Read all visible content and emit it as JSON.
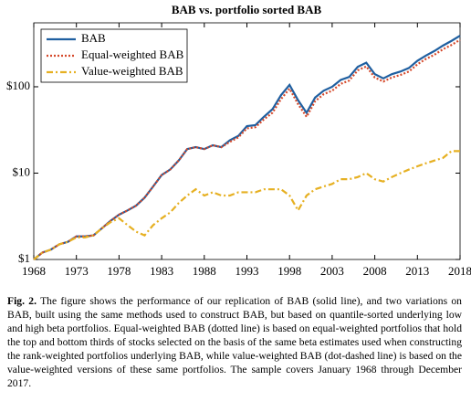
{
  "chart_data": {
    "type": "line",
    "title": "BAB vs. portfolio sorted BAB",
    "x": [
      1968,
      1969,
      1970,
      1971,
      1972,
      1973,
      1974,
      1975,
      1976,
      1977,
      1978,
      1979,
      1980,
      1981,
      1982,
      1983,
      1984,
      1985,
      1986,
      1987,
      1988,
      1989,
      1990,
      1991,
      1992,
      1993,
      1994,
      1995,
      1996,
      1997,
      1998,
      1999,
      2000,
      2001,
      2002,
      2003,
      2004,
      2005,
      2006,
      2007,
      2008,
      2009,
      2010,
      2011,
      2012,
      2013,
      2014,
      2015,
      2016,
      2017,
      2018
    ],
    "series": [
      {
        "name": "BAB",
        "color": "#1f5fa0",
        "style": "solid",
        "values": [
          1,
          1.2,
          1.3,
          1.5,
          1.6,
          1.85,
          1.85,
          1.9,
          2.3,
          2.8,
          3.3,
          3.7,
          4.2,
          5.2,
          7,
          9.5,
          11,
          14,
          19,
          20,
          19,
          21,
          20,
          24,
          27,
          35,
          36,
          45,
          55,
          80,
          105,
          70,
          50,
          75,
          90,
          100,
          120,
          130,
          170,
          190,
          140,
          125,
          140,
          150,
          165,
          200,
          230,
          260,
          300,
          340,
          390
        ]
      },
      {
        "name": "Equal-weighted BAB",
        "color": "#d5492b",
        "style": "dotted",
        "values": [
          1,
          1.2,
          1.3,
          1.5,
          1.6,
          1.85,
          1.85,
          1.9,
          2.3,
          2.8,
          3.3,
          3.7,
          4.2,
          5.2,
          7,
          9.5,
          11,
          14,
          19,
          20,
          19,
          21,
          20,
          23,
          26,
          33,
          34,
          42,
          50,
          72,
          95,
          63,
          45,
          68,
          82,
          90,
          108,
          118,
          155,
          172,
          128,
          115,
          128,
          137,
          150,
          182,
          210,
          235,
          272,
          305,
          350
        ]
      },
      {
        "name": "Value-weighted BAB",
        "color": "#e6b022",
        "style": "dashdot",
        "values": [
          1,
          1.2,
          1.3,
          1.5,
          1.6,
          1.8,
          1.8,
          1.9,
          2.3,
          2.7,
          3,
          2.5,
          2.1,
          1.9,
          2.5,
          3,
          3.5,
          4.5,
          5.5,
          6.5,
          5.5,
          6,
          5.5,
          5.5,
          6,
          6,
          6,
          6.5,
          6.5,
          6.5,
          5.5,
          3.7,
          5.5,
          6.5,
          7,
          7.5,
          8.5,
          8.5,
          9,
          10,
          8.5,
          8,
          9,
          10,
          11,
          12,
          13,
          14,
          15,
          18,
          18
        ]
      }
    ],
    "xlim": [
      1968,
      2018
    ],
    "xticks": [
      1968,
      1973,
      1978,
      1983,
      1988,
      1993,
      1998,
      2003,
      2008,
      2013,
      2018
    ],
    "ylim": [
      1,
      550
    ],
    "yscale": "log",
    "yticks": [
      {
        "value": 1,
        "label": "$1"
      },
      {
        "value": 10,
        "label": "$10"
      },
      {
        "value": 100,
        "label": "$100"
      }
    ],
    "legend": "upper left"
  },
  "caption": {
    "label": "Fig. 2.",
    "text": "The figure shows the performance of our replication of BAB (solid line), and two variations on BAB, built using the same methods used to construct BAB, but based on quantile-sorted underlying low and high beta portfolios. Equal-weighted BAB (dotted line) is based on equal-weighted portfolios that hold the top and bottom thirds of stocks selected on the basis of the same beta estimates used when constructing the rank-weighted portfolios underlying BAB, while value-weighted BAB (dot-dashed line) is based on the value-weighted versions of these same portfolios. The sample covers January 1968 through December 2017."
  }
}
